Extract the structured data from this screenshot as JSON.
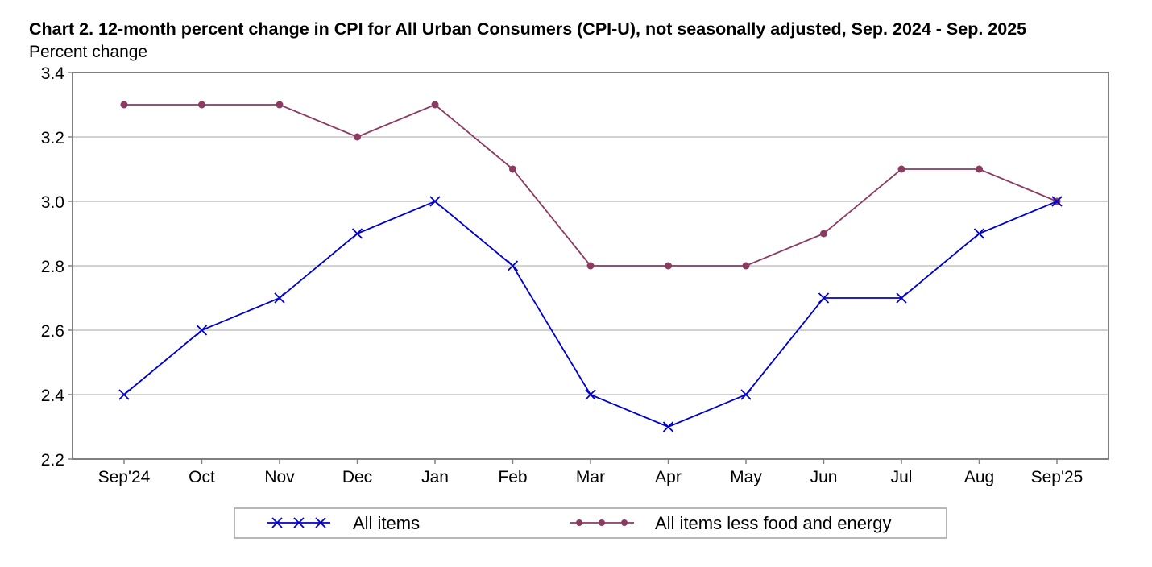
{
  "chart_data": {
    "type": "line",
    "title": "Chart 2. 12-month percent change in CPI for All Urban Consumers (CPI-U), not seasonally adjusted, Sep. 2024 - Sep. 2025",
    "ylabel": "Percent change",
    "xlabel": "",
    "categories": [
      "Sep'24",
      "Oct",
      "Nov",
      "Dec",
      "Jan",
      "Feb",
      "Mar",
      "Apr",
      "May",
      "Jun",
      "Jul",
      "Aug",
      "Sep'25"
    ],
    "ylim": [
      2.2,
      3.4
    ],
    "yticks": [
      "2.2",
      "2.4",
      "2.6",
      "2.8",
      "3.0",
      "3.2",
      "3.4"
    ],
    "grid": true,
    "legend_position": "bottom",
    "series": [
      {
        "name": "All items",
        "marker": "x",
        "color": "#0000cc",
        "values": [
          2.4,
          2.6,
          2.7,
          2.9,
          3.0,
          2.8,
          2.4,
          2.3,
          2.4,
          2.7,
          2.7,
          2.9,
          3.0
        ]
      },
      {
        "name": "All items less food and energy",
        "marker": "circle",
        "color": "#8b3a62",
        "values": [
          3.3,
          3.3,
          3.3,
          3.2,
          3.3,
          3.1,
          2.8,
          2.8,
          2.8,
          2.9,
          3.1,
          3.1,
          3.0
        ]
      }
    ]
  }
}
